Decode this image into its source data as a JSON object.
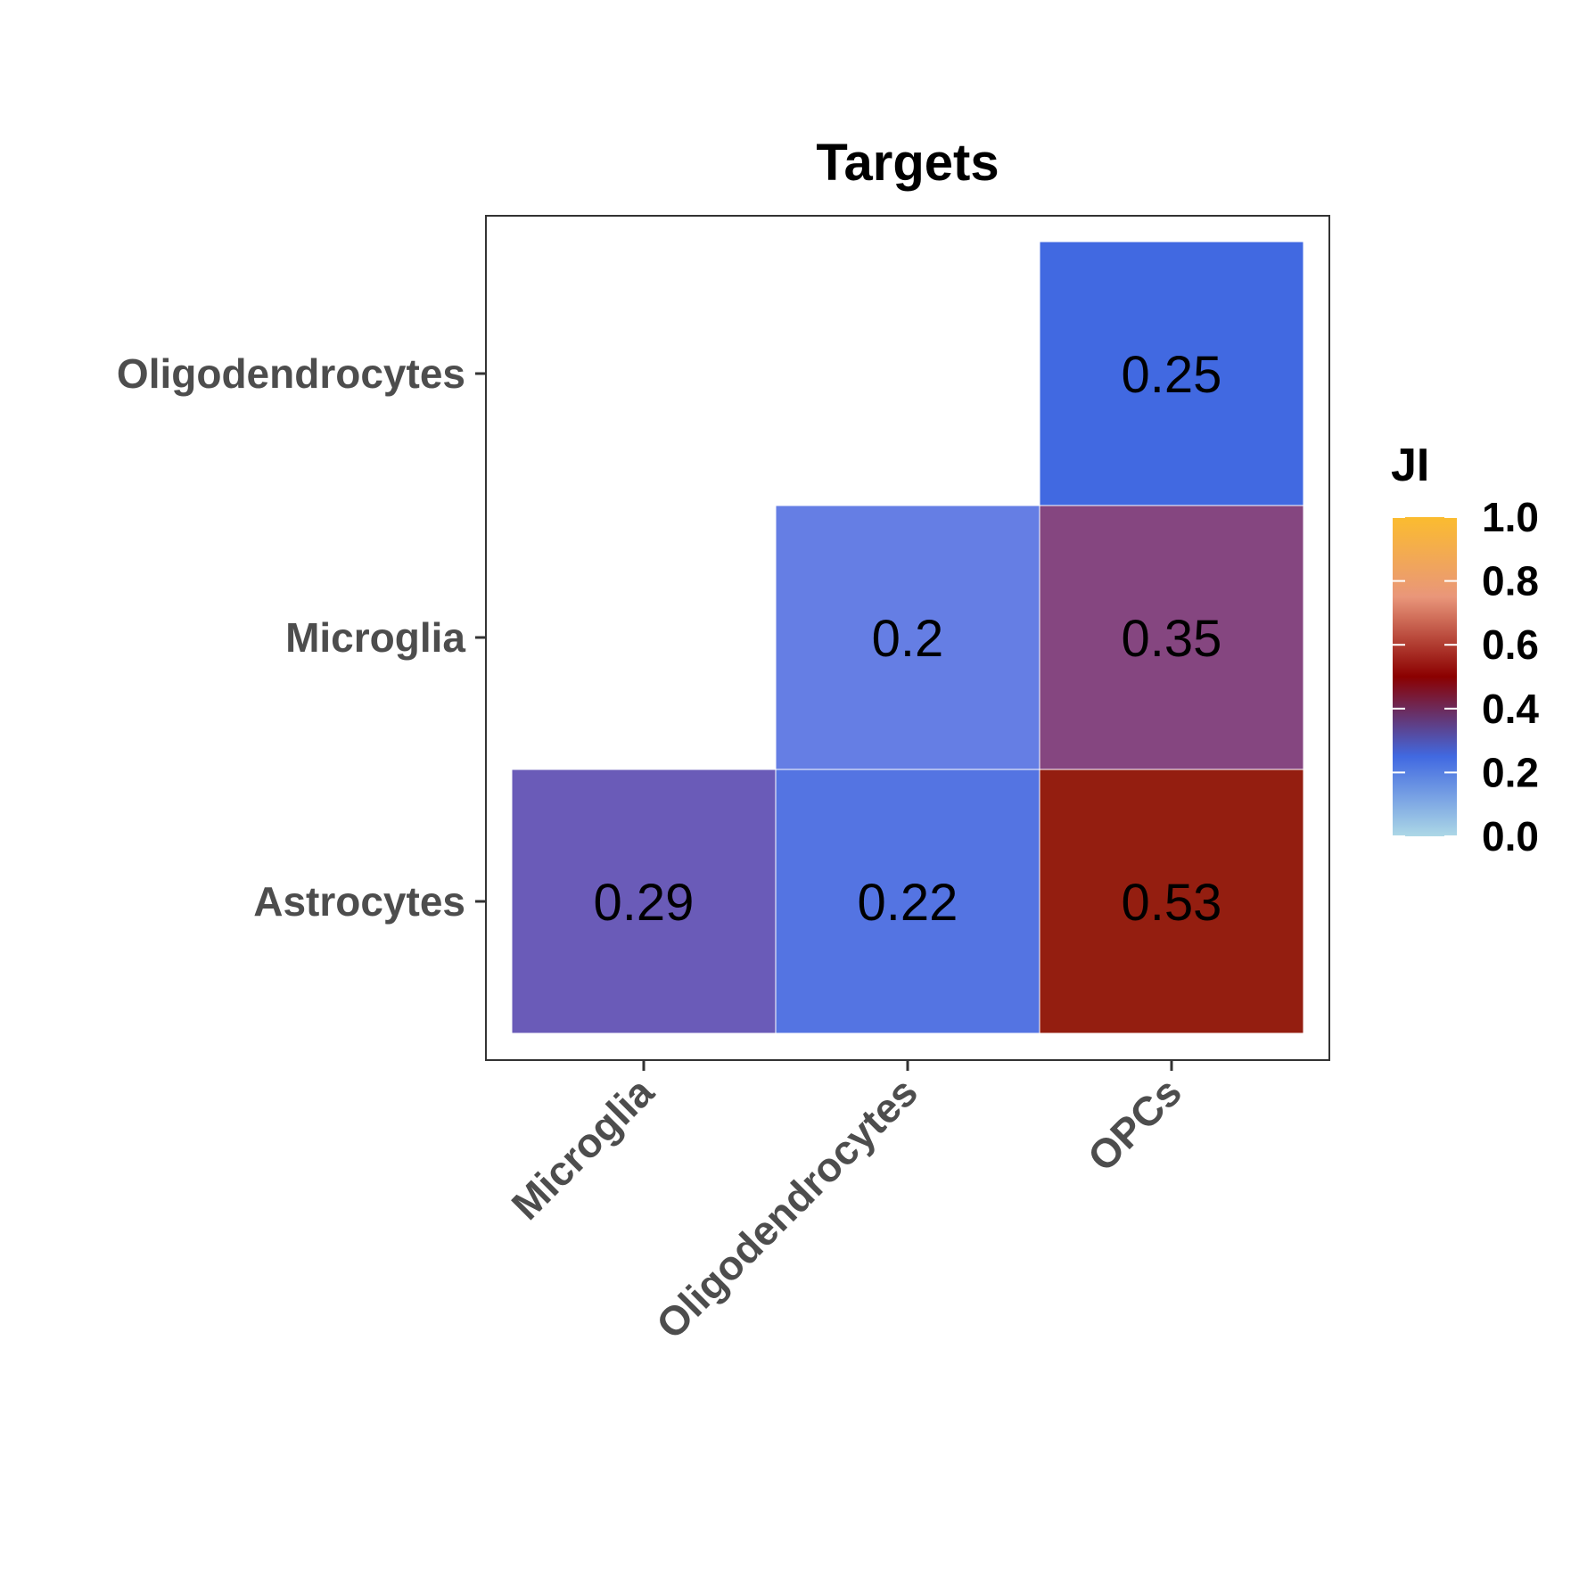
{
  "chart_data": {
    "type": "heatmap",
    "title": "Targets",
    "x_categories": [
      "Microglia",
      "Oligodendrocytes",
      "OPCs"
    ],
    "y_categories": [
      "Astrocytes",
      "Microglia",
      "Oligodendrocytes"
    ],
    "cells": [
      {
        "x": "Microglia",
        "y": "Astrocytes",
        "value": 0.29,
        "label": "0.29",
        "color": "#6a5bb8"
      },
      {
        "x": "Oligodendrocytes",
        "y": "Astrocytes",
        "value": 0.22,
        "label": "0.22",
        "color": "#5474e2"
      },
      {
        "x": "OPCs",
        "y": "Astrocytes",
        "value": 0.53,
        "label": "0.53",
        "color": "#941e10"
      },
      {
        "x": "Oligodendrocytes",
        "y": "Microglia",
        "value": 0.2,
        "label": "0.2",
        "color": "#657ee4"
      },
      {
        "x": "OPCs",
        "y": "Microglia",
        "value": 0.35,
        "label": "0.35",
        "color": "#854680"
      },
      {
        "x": "OPCs",
        "y": "Oligodendrocytes",
        "value": 0.25,
        "label": "0.25",
        "color": "#4169e1"
      }
    ],
    "legend": {
      "title": "JI",
      "range": [
        0,
        1
      ],
      "ticks": [
        "0.0",
        "0.2",
        "0.4",
        "0.6",
        "0.8",
        "1.0"
      ],
      "tick_values": [
        0,
        0.2,
        0.4,
        0.6,
        0.8,
        1.0
      ],
      "gradient": [
        {
          "value": 0.0,
          "color": "#add8e6"
        },
        {
          "value": 0.25,
          "color": "#4169e1"
        },
        {
          "value": 0.5,
          "color": "#8b0000"
        },
        {
          "value": 0.75,
          "color": "#e9967a"
        },
        {
          "value": 1.0,
          "color": "#fbbc2f"
        }
      ]
    },
    "grid": false
  }
}
